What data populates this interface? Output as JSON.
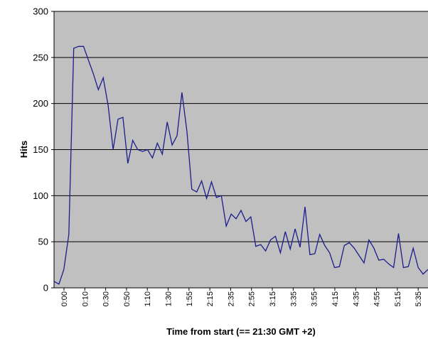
{
  "chart_data": {
    "type": "line",
    "title": "",
    "xlabel": "Time from start (== 21:30 GMT +2)",
    "ylabel": "Hits",
    "ylim": [
      0,
      300
    ],
    "yticks": [
      0,
      50,
      100,
      150,
      200,
      250,
      300
    ],
    "grid": "horizontal",
    "colors": {
      "plot_background": "#c0c0c0",
      "line": "#1c1c8c",
      "gridline": "#000000"
    },
    "x_tick_labels": [
      "0:00",
      "0:10",
      "0:30",
      "0:50",
      "1:10",
      "1:30",
      "1:55",
      "2:15",
      "2:35",
      "2:55",
      "3:15",
      "3:35",
      "3:55",
      "4:15",
      "4:35",
      "4:55",
      "5:15",
      "5:35"
    ],
    "series": [
      {
        "values": [
          7,
          4,
          20,
          58,
          260,
          262,
          262,
          247,
          232,
          215,
          228,
          198,
          150,
          183,
          185,
          135,
          160,
          150,
          148,
          150,
          141,
          157,
          145,
          180,
          155,
          165,
          212,
          170,
          107,
          104,
          116,
          97,
          115,
          98,
          100,
          67,
          80,
          75,
          84,
          72,
          77,
          45,
          47,
          40,
          52,
          56,
          38,
          61,
          42,
          64,
          44,
          88,
          36,
          37,
          58,
          46,
          38,
          22,
          23,
          46,
          49,
          43,
          35,
          27,
          52,
          43,
          30,
          31,
          26,
          22,
          59,
          22,
          23,
          43,
          22,
          15,
          20
        ]
      }
    ]
  }
}
